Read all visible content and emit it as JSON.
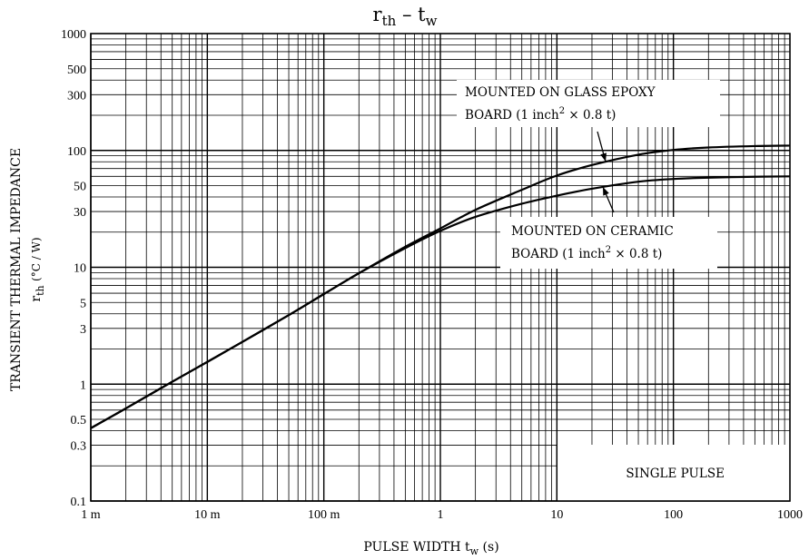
{
  "chart_data": {
    "type": "line",
    "title_main": "r",
    "title_sub": "th",
    "title_dash": "–",
    "title_main2": "t",
    "title_sub2": "w",
    "xscale": "log",
    "yscale": "log",
    "xlim": [
      0.001,
      1000
    ],
    "ylim": [
      0.1,
      1000
    ],
    "grid": true,
    "xlabel": {
      "text": "PULSE WIDTH",
      "symbol": "t",
      "symbol_sub": "w",
      "unit": "(s)"
    },
    "ylabel": {
      "text": "TRANSIENT THERMAL IMPEDANCE",
      "symbol": "r",
      "symbol_sub": "th",
      "unit": "(°C / W)"
    },
    "x_ticks": [
      {
        "value": 0.001,
        "label": "1 m"
      },
      {
        "value": 0.01,
        "label": "10 m"
      },
      {
        "value": 0.1,
        "label": "100 m"
      },
      {
        "value": 1,
        "label": "1"
      },
      {
        "value": 10,
        "label": "10"
      },
      {
        "value": 100,
        "label": "100"
      },
      {
        "value": 1000,
        "label": "1000"
      }
    ],
    "y_ticks": [
      {
        "value": 0.1,
        "label": "0.1"
      },
      {
        "value": 0.3,
        "label": "0.3"
      },
      {
        "value": 0.5,
        "label": "0.5"
      },
      {
        "value": 1,
        "label": "1"
      },
      {
        "value": 3,
        "label": "3"
      },
      {
        "value": 5,
        "label": "5"
      },
      {
        "value": 10,
        "label": "10"
      },
      {
        "value": 30,
        "label": "30"
      },
      {
        "value": 50,
        "label": "50"
      },
      {
        "value": 100,
        "label": "100"
      },
      {
        "value": 300,
        "label": "300"
      },
      {
        "value": 500,
        "label": "500"
      },
      {
        "value": 1000,
        "label": "1000"
      }
    ],
    "series": [
      {
        "label_line1": "MOUNTED ON GLASS EPOXY",
        "label_line2_pre": "BOARD (1 inch",
        "label_line2_sup": "2",
        "label_line2_post": " × 0.8 t)",
        "x": [
          0.001,
          0.002,
          0.005,
          0.01,
          0.02,
          0.05,
          0.1,
          0.2,
          0.5,
          1,
          2,
          5,
          10,
          20,
          50,
          100,
          200,
          500,
          1000
        ],
        "y": [
          0.42,
          0.62,
          1.05,
          1.55,
          2.3,
          3.9,
          5.9,
          8.9,
          15.0,
          21.5,
          31.0,
          46.0,
          61.0,
          75.0,
          92.0,
          101.0,
          106.0,
          109.0,
          110.0
        ]
      },
      {
        "label_line1": "MOUNTED ON CERAMIC",
        "label_line2_pre": "BOARD (1 inch",
        "label_line2_sup": "2",
        "label_line2_post": " × 0.8 t)",
        "x": [
          0.001,
          0.002,
          0.005,
          0.01,
          0.02,
          0.05,
          0.1,
          0.2,
          0.5,
          1,
          2,
          5,
          10,
          20,
          50,
          100,
          200,
          500,
          1000
        ],
        "y": [
          0.42,
          0.62,
          1.05,
          1.55,
          2.3,
          3.9,
          5.9,
          8.9,
          14.6,
          20.5,
          27.0,
          35.0,
          41.0,
          47.0,
          54.0,
          57.0,
          58.5,
          59.5,
          60.0
        ]
      }
    ],
    "annotation_box": "SINGLE PULSE"
  }
}
